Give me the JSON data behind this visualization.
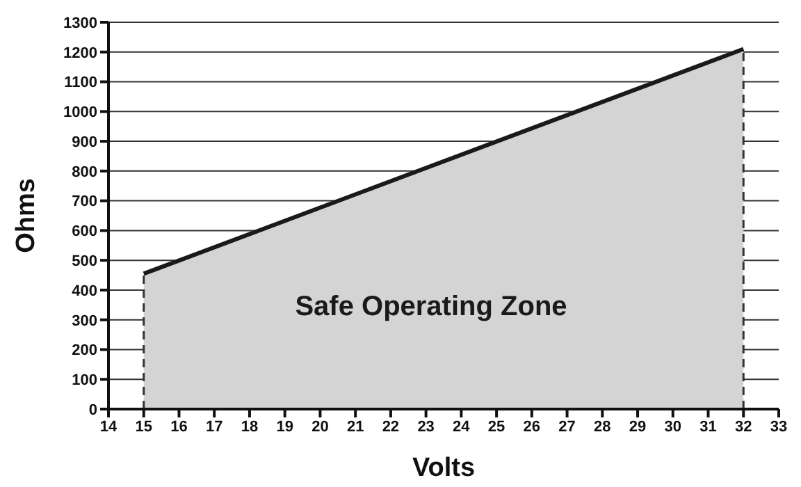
{
  "chart_data": {
    "type": "area",
    "xlabel": "Volts",
    "ylabel": "Ohms",
    "x": [
      15,
      32
    ],
    "series": [
      {
        "color": "#d4d4d4",
        "values": [
          455,
          1210
        ]
      }
    ],
    "xlim": [
      14,
      33
    ],
    "xticks": [
      14,
      15,
      16,
      17,
      18,
      19,
      20,
      21,
      22,
      23,
      24,
      25,
      26,
      27,
      28,
      29,
      30,
      31,
      32,
      33
    ],
    "ylim": [
      0,
      1300
    ],
    "yticks": [
      0,
      100,
      200,
      300,
      400,
      500,
      600,
      700,
      800,
      900,
      1000,
      1100,
      1200,
      1300
    ],
    "grid": "y",
    "legend": false,
    "ref_lines": [
      {
        "axis": "x",
        "value": 15,
        "line_style": "dashed"
      },
      {
        "axis": "x",
        "value": 32,
        "line_style": "dashed"
      }
    ],
    "annotations": [
      "Safe Operating Zone"
    ]
  }
}
